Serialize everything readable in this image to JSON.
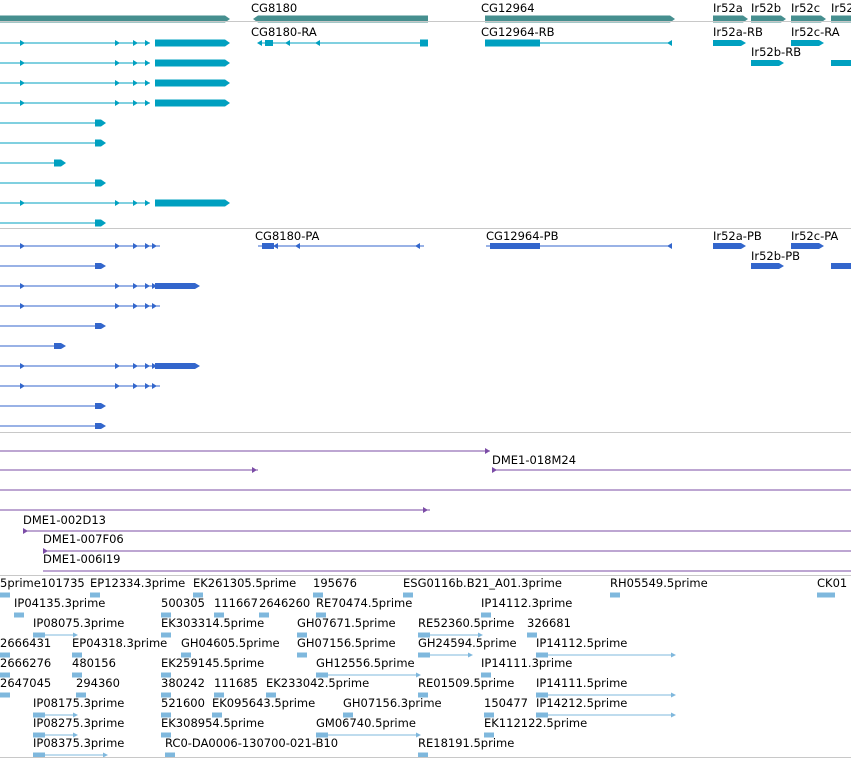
{
  "colors": {
    "gene": "#468f8f",
    "transcript_cg": "#00a0c0",
    "transcript_pb": "#3366cc",
    "clone": "#7b4ca6",
    "est": "#7fb8dd",
    "divider": "#c8c8c8"
  },
  "gene_track": {
    "labels": [
      "CG8180",
      "CG12964",
      "Ir52a",
      "Ir52b",
      "Ir52c",
      "Ir52"
    ]
  },
  "transcripts_ra": {
    "labels": [
      "CG8180-RA",
      "CG12964-RB",
      "Ir52a-RB",
      "Ir52c-RA",
      "Ir52b-RB"
    ]
  },
  "transcripts_pa": {
    "labels": [
      "CG8180-PA",
      "CG12964-PB",
      "Ir52a-PB",
      "Ir52c-PA",
      "Ir52b-PB"
    ]
  },
  "clones": {
    "labels": [
      "DME1-018M24",
      "DME1-002D13",
      "DME1-007F06",
      "DME1-006I19"
    ]
  },
  "est_track": {
    "rows": [
      [
        "5prime101735",
        "EP12334.3prime",
        "EK261305.5prime",
        "195676",
        "ESG0116b.B21_A01.3prime",
        "RH05549.5prime",
        "CK01"
      ],
      [
        "IP04135.3prime",
        "500305",
        "111667",
        "2646260",
        "RE70474.5prime",
        "IP14112.3prime"
      ],
      [
        "IP08075.3prime",
        "EK303314.5prime",
        "GH07671.5prime",
        "RE52360.5prime",
        "326681"
      ],
      [
        "2666431",
        "EP04318.3prime",
        "GH04605.5prime",
        "GH07156.5prime",
        "GH24594.5prime",
        "IP14112.5prime"
      ],
      [
        "2666276",
        "480156",
        "EK259145.5prime",
        "GH12556.5prime",
        "IP14111.3prime"
      ],
      [
        "2647045",
        "294360",
        "380242",
        "111685",
        "EK233042.5prime",
        "RE01509.5prime",
        "IP14111.5prime"
      ],
      [
        "IP08175.3prime",
        "521600",
        "EK095643.5prime",
        "GH07156.3prime",
        "150477",
        "IP14212.5prime"
      ],
      [
        "IP08275.3prime",
        "EK308954.5prime",
        "GM06740.5prime",
        "EK112122.5prime"
      ],
      [
        "IP08375.3prime",
        "RC0-DA0006-130700-021-B10",
        "RE18191.5prime"
      ]
    ]
  }
}
